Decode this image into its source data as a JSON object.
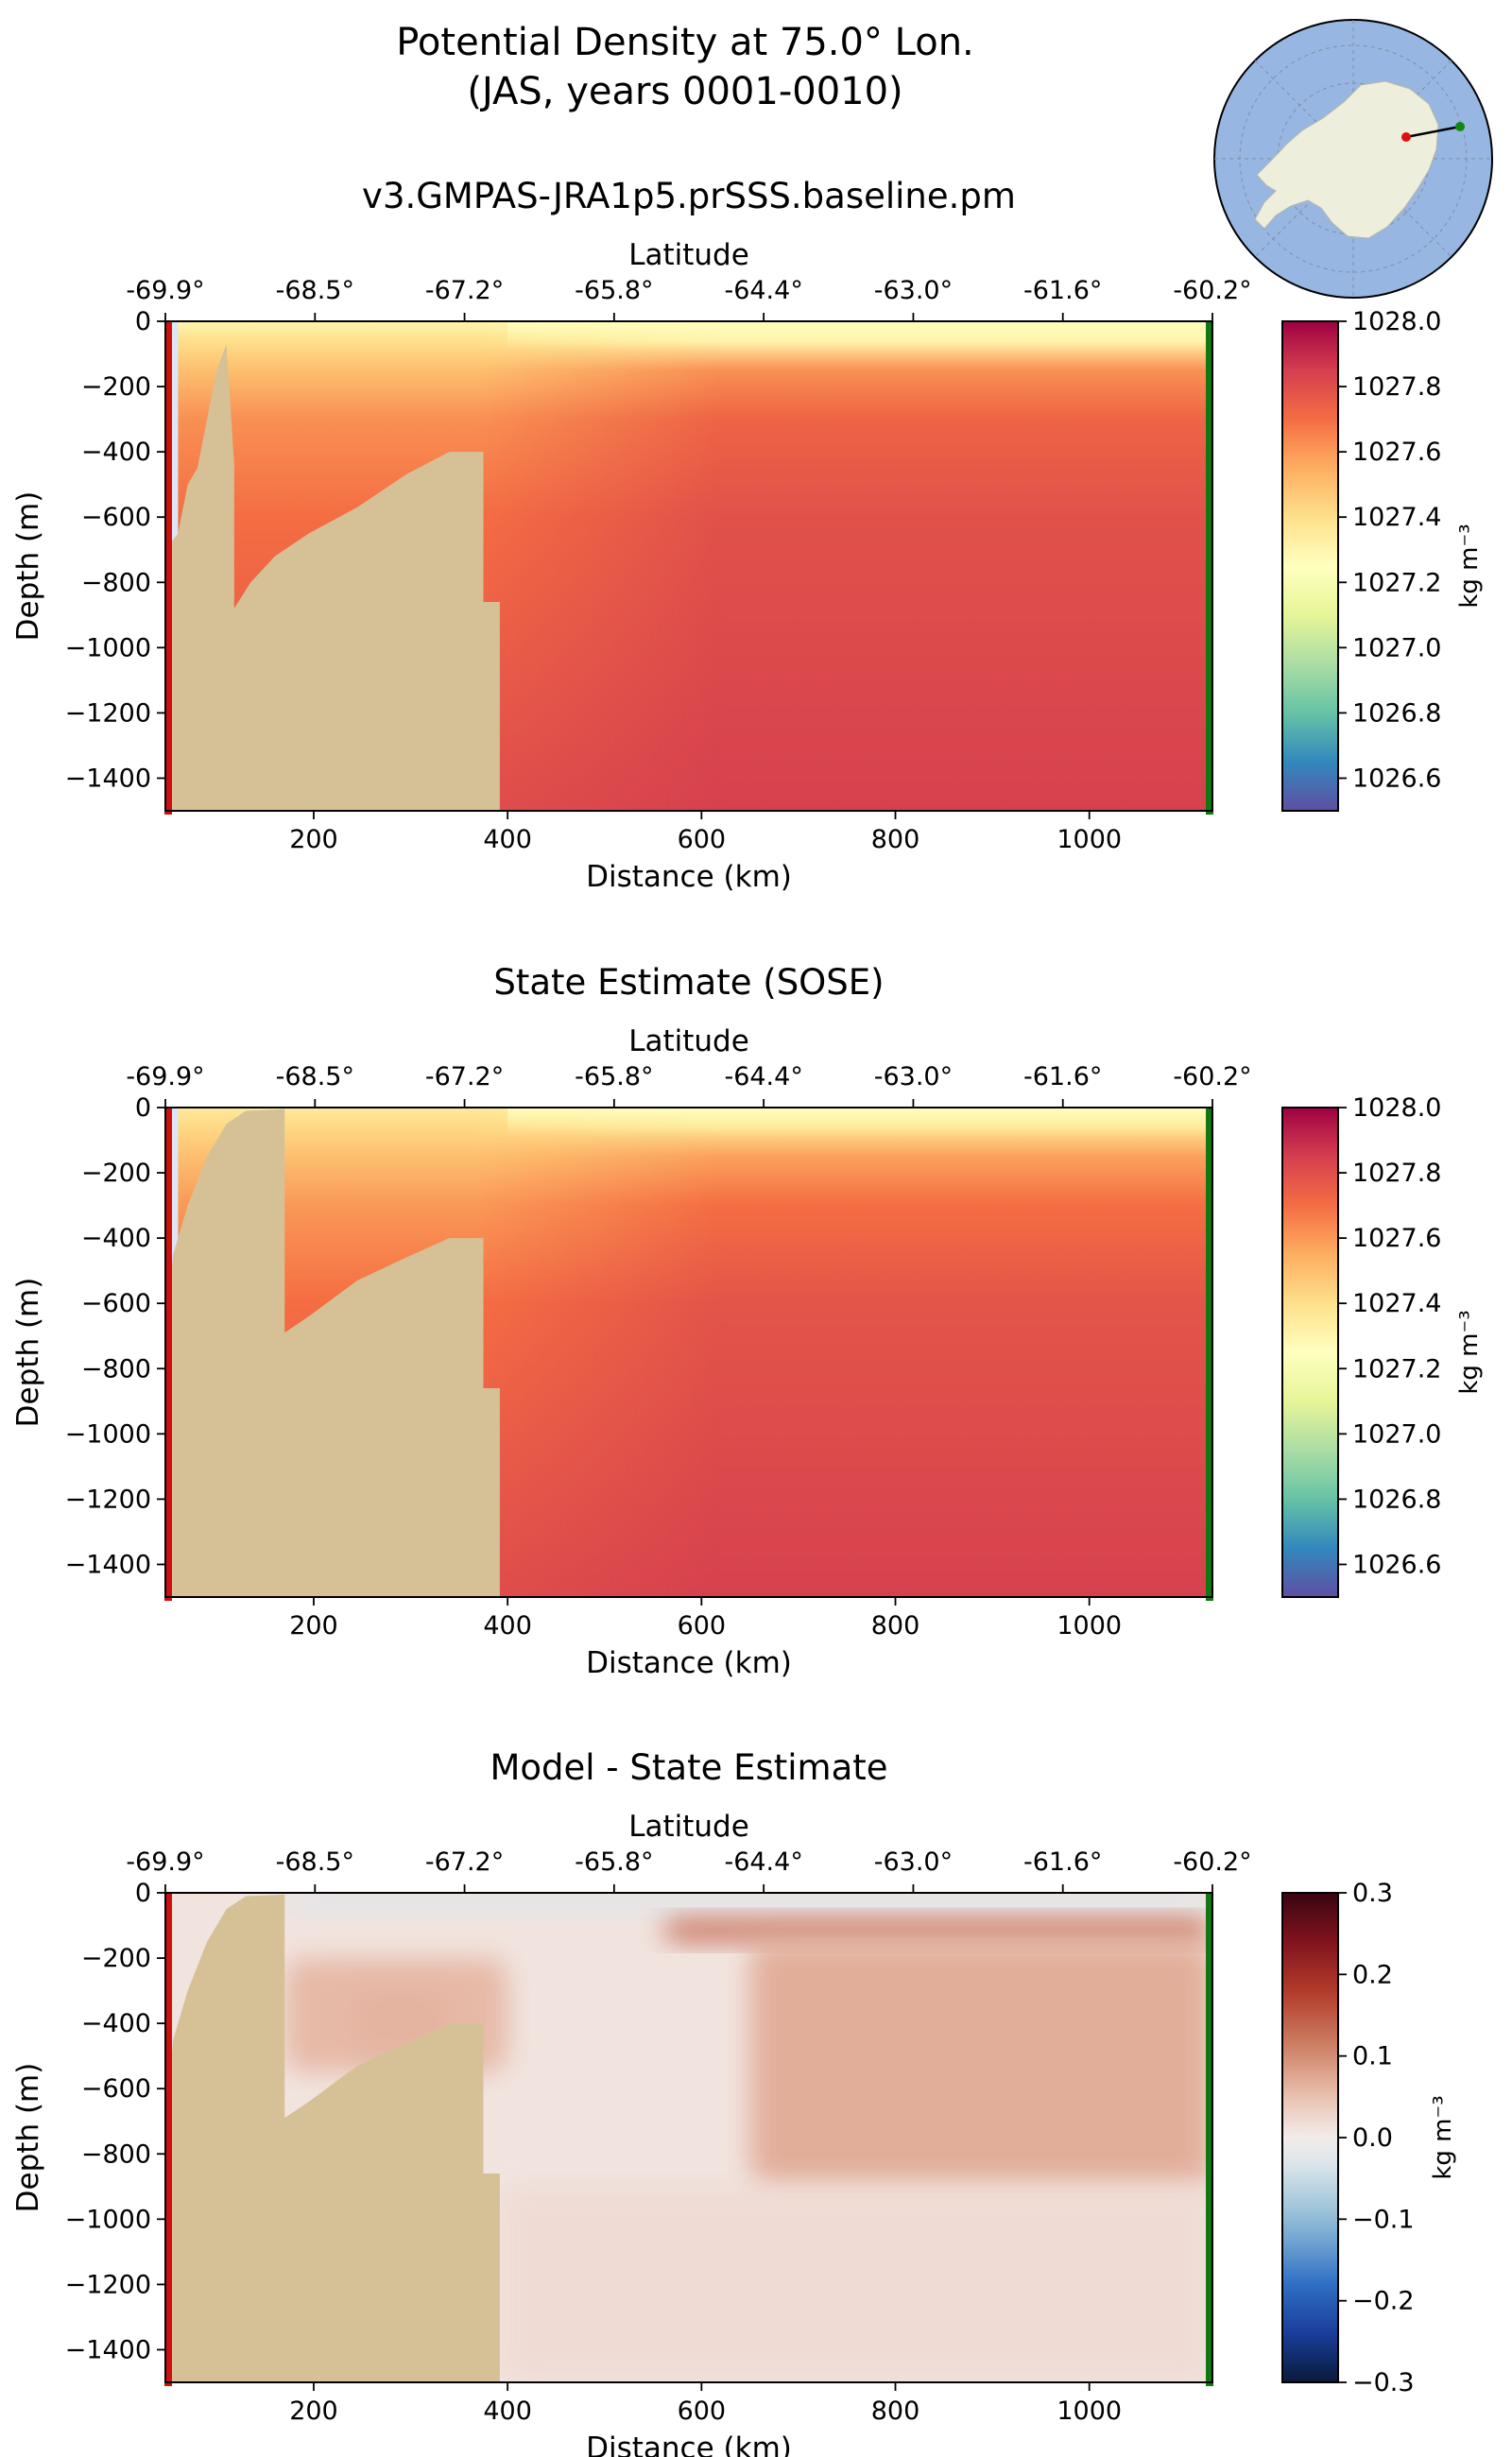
{
  "figure": {
    "title_line1": "Potential Density at 75.0° Lon.",
    "title_line2": "(JAS, years 0001-0010)"
  },
  "inset_map": {
    "description_name": "Antarctica polar map with section line",
    "land_color": "#eeeedd",
    "ocean_color": "#97b6e1",
    "start_marker_color": "#dd1111",
    "end_marker_color": "#118811"
  },
  "colors": {
    "land_mask": "#d6c197",
    "no_data": "#dde6f5",
    "start_marker_line": "#cc1111",
    "end_marker_line": "#117711"
  },
  "chart_data": [
    {
      "type": "heatmap",
      "id": "model",
      "title": "v3.GMPAS-JRA1p5.prSSS.baseline.pm",
      "xlabel": "Distance (km)",
      "ylabel": "Depth (m)",
      "top_xlabel": "Latitude",
      "xlim": [
        47,
        1127
      ],
      "ylim": [
        -1500,
        0
      ],
      "x_ticks": [
        200,
        400,
        600,
        800,
        1000
      ],
      "y_ticks": [
        0,
        -200,
        -400,
        -600,
        -800,
        -1000,
        -1200,
        -1400
      ],
      "y_tick_labels": [
        "0",
        "−200",
        "−400",
        "−600",
        "−800",
        "−1000",
        "−1200",
        "−1400"
      ],
      "lat_ticks": [
        "-69.9°",
        "-68.5°",
        "-67.2°",
        "-65.8°",
        "-64.4°",
        "-63.0°",
        "-61.6°",
        "-60.2°"
      ],
      "colorbar": {
        "label": "kg m⁻³",
        "colormap": "Spectral_r",
        "range": [
          1026.5,
          1028.0
        ],
        "ticks": [
          1028.0,
          1027.8,
          1027.6,
          1027.4,
          1027.2,
          1027.0,
          1026.8,
          1026.6
        ],
        "tick_labels": [
          "1028.0",
          "1027.8",
          "1027.6",
          "1027.4",
          "1027.2",
          "1027.0",
          "1026.8",
          "1026.6"
        ]
      },
      "bathymetry_km_m": [
        [
          47,
          -1500
        ],
        [
          47,
          -700
        ],
        [
          60,
          -650
        ],
        [
          70,
          -500
        ],
        [
          80,
          -450
        ],
        [
          90,
          -300
        ],
        [
          100,
          -150
        ],
        [
          110,
          -70
        ],
        [
          118,
          -440
        ],
        [
          118,
          -880
        ],
        [
          135,
          -800
        ],
        [
          160,
          -720
        ],
        [
          195,
          -650
        ],
        [
          245,
          -570
        ],
        [
          295,
          -470
        ],
        [
          340,
          -400
        ],
        [
          375,
          -400
        ],
        [
          375,
          -860
        ],
        [
          392,
          -860
        ],
        [
          392,
          -1500
        ]
      ],
      "field_bands": [
        {
          "depth": 0,
          "value_shelf": 1027.3,
          "value_open": 1027.28
        },
        {
          "depth": -60,
          "value_shelf": 1027.4,
          "value_open": 1027.32
        },
        {
          "depth": -150,
          "value_shelf": 1027.5,
          "value_open": 1027.62
        },
        {
          "depth": -300,
          "value_shelf": 1027.62,
          "value_open": 1027.73
        },
        {
          "depth": -600,
          "value_shelf": 1027.7,
          "value_open": 1027.79
        },
        {
          "depth": -1500,
          "value_shelf": 1027.8,
          "value_open": 1027.84
        }
      ]
    },
    {
      "type": "heatmap",
      "id": "sose",
      "title": "State Estimate (SOSE)",
      "xlabel": "Distance (km)",
      "ylabel": "Depth (m)",
      "top_xlabel": "Latitude",
      "xlim": [
        47,
        1127
      ],
      "ylim": [
        -1500,
        0
      ],
      "x_ticks": [
        200,
        400,
        600,
        800,
        1000
      ],
      "y_ticks": [
        0,
        -200,
        -400,
        -600,
        -800,
        -1000,
        -1200,
        -1400
      ],
      "y_tick_labels": [
        "0",
        "−200",
        "−400",
        "−600",
        "−800",
        "−1000",
        "−1200",
        "−1400"
      ],
      "lat_ticks": [
        "-69.9°",
        "-68.5°",
        "-67.2°",
        "-65.8°",
        "-64.4°",
        "-63.0°",
        "-61.6°",
        "-60.2°"
      ],
      "colorbar": {
        "label": "kg m⁻³",
        "colormap": "Spectral_r",
        "range": [
          1026.5,
          1028.0
        ],
        "ticks": [
          1028.0,
          1027.8,
          1027.6,
          1027.4,
          1027.2,
          1027.0,
          1026.8,
          1026.6
        ],
        "tick_labels": [
          "1028.0",
          "1027.8",
          "1027.6",
          "1027.4",
          "1027.2",
          "1027.0",
          "1026.8",
          "1026.6"
        ]
      },
      "bathymetry_km_m": [
        [
          47,
          -1500
        ],
        [
          47,
          -700
        ],
        [
          55,
          -450
        ],
        [
          70,
          -300
        ],
        [
          90,
          -150
        ],
        [
          110,
          -50
        ],
        [
          130,
          -10
        ],
        [
          170,
          -5
        ],
        [
          170,
          -690
        ],
        [
          180,
          -670
        ],
        [
          195,
          -640
        ],
        [
          245,
          -530
        ],
        [
          295,
          -460
        ],
        [
          340,
          -400
        ],
        [
          375,
          -400
        ],
        [
          375,
          -860
        ],
        [
          392,
          -860
        ],
        [
          392,
          -1500
        ]
      ],
      "field_bands": [
        {
          "depth": 0,
          "value_shelf": 1027.35,
          "value_open": 1027.3
        },
        {
          "depth": -60,
          "value_shelf": 1027.42,
          "value_open": 1027.38
        },
        {
          "depth": -150,
          "value_shelf": 1027.5,
          "value_open": 1027.58
        },
        {
          "depth": -300,
          "value_shelf": 1027.6,
          "value_open": 1027.7
        },
        {
          "depth": -600,
          "value_shelf": 1027.7,
          "value_open": 1027.78
        },
        {
          "depth": -1500,
          "value_shelf": 1027.8,
          "value_open": 1027.84
        }
      ]
    },
    {
      "type": "heatmap",
      "id": "diff",
      "title": "Model - State Estimate",
      "xlabel": "Distance (km)",
      "ylabel": "Depth (m)",
      "top_xlabel": "Latitude",
      "xlim": [
        47,
        1127
      ],
      "ylim": [
        -1500,
        0
      ],
      "x_ticks": [
        200,
        400,
        600,
        800,
        1000
      ],
      "y_ticks": [
        0,
        -200,
        -400,
        -600,
        -800,
        -1000,
        -1200,
        -1400
      ],
      "y_tick_labels": [
        "0",
        "−200",
        "−400",
        "−600",
        "−800",
        "−1000",
        "−1200",
        "−1400"
      ],
      "lat_ticks": [
        "-69.9°",
        "-68.5°",
        "-67.2°",
        "-65.8°",
        "-64.4°",
        "-63.0°",
        "-61.6°",
        "-60.2°"
      ],
      "colorbar": {
        "label": "kg m⁻³",
        "colormap": "RdBu_r",
        "range": [
          -0.3,
          0.3
        ],
        "ticks": [
          0.3,
          0.2,
          0.1,
          0.0,
          -0.1,
          -0.2,
          -0.3
        ],
        "tick_labels": [
          "0.3",
          "0.2",
          "0.1",
          "0.0",
          "−0.1",
          "−0.2",
          "−0.3"
        ]
      },
      "bathymetry_km_m": [
        [
          47,
          -1500
        ],
        [
          47,
          -700
        ],
        [
          55,
          -450
        ],
        [
          70,
          -300
        ],
        [
          90,
          -150
        ],
        [
          110,
          -50
        ],
        [
          130,
          -10
        ],
        [
          170,
          -5
        ],
        [
          170,
          -690
        ],
        [
          180,
          -670
        ],
        [
          195,
          -640
        ],
        [
          245,
          -530
        ],
        [
          295,
          -460
        ],
        [
          340,
          -400
        ],
        [
          375,
          -400
        ],
        [
          375,
          -860
        ],
        [
          392,
          -860
        ],
        [
          392,
          -1500
        ]
      ],
      "anomalies": [
        {
          "name": "surface-fresh-band",
          "x": [
            170,
            1127
          ],
          "depth": [
            0,
            -60
          ],
          "value": -0.03
        },
        {
          "name": "shelf-dense-core",
          "x": [
            240,
            340
          ],
          "depth": [
            -300,
            -480
          ],
          "value": 0.12
        },
        {
          "name": "shelf-warm-layer",
          "x": [
            170,
            400
          ],
          "depth": [
            -200,
            -550
          ],
          "value": 0.06
        },
        {
          "name": "thermocline-positive",
          "x": [
            560,
            1127
          ],
          "depth": [
            -80,
            -150
          ],
          "value": 0.13
        },
        {
          "name": "deep-positive",
          "x": [
            650,
            1127
          ],
          "depth": [
            -150,
            -900
          ],
          "value": 0.07
        },
        {
          "name": "deep-background",
          "x": [
            392,
            1127
          ],
          "depth": [
            -900,
            -1500
          ],
          "value": 0.02
        }
      ]
    }
  ]
}
